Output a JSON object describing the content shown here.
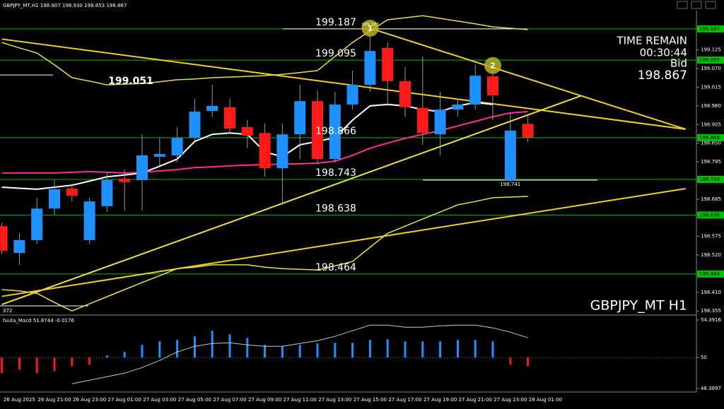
{
  "header": "GBPJPY_MT,H1  198.907 198.930 198.853 198.867",
  "info": {
    "time_remain_label": "TIME REMAIN",
    "time_remain": "00:30:44",
    "bid_label": "Bid",
    "bid": "198.867",
    "symbol": "GBPJPY_MT H1"
  },
  "chart_data": [
    {
      "type": "candlestick",
      "categories": [
        null,
        "26 Aug 2025",
        null,
        "26 Aug 21:00",
        null,
        "26 Aug 23:00",
        null,
        "27 Aug 01:00",
        null,
        "27 Aug 03:00",
        null,
        "27 Aug 05:00",
        null,
        "27 Aug 07:00",
        null,
        "27 Aug 09:00",
        null,
        "27 Aug 11:00",
        null,
        "27 Aug 13:00",
        null,
        "27 Aug 15:00",
        null,
        "27 Aug 17:00",
        null,
        "27 Aug 19:00",
        null,
        "27 Aug 21:00",
        null,
        "27 Aug 23:00",
        null,
        "28 Aug 01:00"
      ],
      "open": [
        198.605,
        198.526,
        198.564,
        198.657,
        198.716,
        198.564,
        198.664,
        198.745,
        198.741,
        198.81,
        198.814,
        198.866,
        198.945,
        198.956,
        198.897,
        198.88,
        198.776,
        198.876,
        198.974,
        198.803,
        198.964,
        199.022,
        199.131,
        199.033,
        198.954,
        198.876,
        198.949,
        198.964,
        199.047,
        198.741,
        198.907,
        null
      ],
      "high": [
        198.616,
        198.585,
        198.689,
        198.741,
        198.73,
        198.689,
        198.762,
        198.772,
        198.876,
        198.866,
        198.897,
        198.981,
        199.022,
        198.981,
        198.918,
        198.908,
        198.908,
        199.022,
        199.006,
        199.001,
        199.064,
        199.179,
        199.147,
        199.074,
        199.106,
        199.001,
        198.981,
        199.081,
        199.064,
        198.939,
        198.93,
        null
      ],
      "low": [
        198.522,
        198.491,
        198.553,
        198.637,
        198.678,
        198.553,
        198.647,
        198.651,
        198.651,
        198.783,
        198.793,
        198.855,
        198.928,
        198.876,
        198.835,
        198.751,
        198.668,
        198.803,
        198.789,
        198.793,
        198.949,
        199.001,
        198.96,
        198.928,
        198.845,
        198.814,
        198.928,
        198.949,
        198.918,
        198.735,
        198.853,
        null
      ],
      "close": [
        198.532,
        198.564,
        198.657,
        198.714,
        198.695,
        198.678,
        198.741,
        198.735,
        198.814,
        198.818,
        198.866,
        198.943,
        198.96,
        198.893,
        198.872,
        198.776,
        198.876,
        198.974,
        198.803,
        198.964,
        199.022,
        199.122,
        199.033,
        198.956,
        198.88,
        198.949,
        198.964,
        199.049,
        198.991,
        198.887,
        198.867,
        null
      ],
      "up_color": "#1e90ff",
      "down_color": "#ff1a1a",
      "wick_color": "#9a9a9a",
      "ylim": [
        198.345,
        199.241
      ],
      "yticks": [
        199.125,
        {
          "value": 199.07,
          "label": "199.070"
        },
        199.015,
        {
          "value": 198.96,
          "label": "198.960"
        },
        198.905,
        {
          "value": 198.85,
          "label": "198.850"
        },
        198.795,
        198.685,
        198.575,
        {
          "value": 198.52,
          "label": "198.520"
        },
        {
          "value": 198.41,
          "label": "198.410"
        },
        198.355
      ],
      "overlays": [
        {
          "color": "#ffffff",
          "values": [
            198.72,
            198.717,
            198.714,
            198.72,
            198.726,
            198.738,
            198.751,
            198.756,
            198.762,
            198.782,
            198.803,
            198.855,
            198.876,
            198.88,
            198.876,
            198.824,
            198.81,
            198.845,
            198.855,
            198.866,
            198.918,
            198.96,
            198.964,
            198.96,
            198.949,
            198.943,
            198.96,
            198.97,
            198.964,
            null,
            null,
            null
          ]
        },
        {
          "color": "#ff2e9a",
          "values": [
            198.762,
            198.762,
            198.762,
            198.762,
            198.764,
            198.766,
            198.764,
            198.762,
            198.764,
            198.768,
            198.772,
            198.778,
            198.78,
            198.783,
            198.785,
            198.787,
            198.788,
            198.789,
            198.791,
            198.797,
            198.814,
            198.835,
            198.85,
            198.864,
            198.876,
            198.887,
            198.901,
            198.914,
            198.928,
            198.939,
            198.943,
            null
          ]
        },
        {
          "color": "#e8e04a",
          "values": [
            199.147,
            199.131,
            199.116,
            199.081,
            199.043,
            199.033,
            199.022,
            199.024,
            199.026,
            199.031,
            199.037,
            199.039,
            199.043,
            199.045,
            199.047,
            199.049,
            199.053,
            199.058,
            199.064,
            199.106,
            199.147,
            199.181,
            199.214,
            199.22,
            199.226,
            199.218,
            199.21,
            199.202,
            199.193,
            199.189,
            199.185,
            null
          ]
        },
        {
          "color": "#e8e04a",
          "values": [
            198.418,
            198.414,
            198.407,
            198.38,
            198.355,
            198.376,
            198.397,
            198.418,
            198.439,
            198.459,
            198.48,
            198.484,
            198.491,
            198.491,
            198.491,
            198.484,
            198.48,
            198.478,
            198.476,
            198.488,
            198.501,
            198.543,
            198.584,
            198.605,
            198.626,
            198.647,
            198.668,
            198.678,
            198.689,
            198.691,
            198.693,
            null
          ]
        }
      ],
      "trendlines": [
        {
          "color": "#f0d020",
          "points": [
            [
              0,
              199.157
            ],
            [
              39,
              198.891
            ]
          ]
        },
        {
          "color": "#f0d020",
          "points": [
            [
              21,
              199.189
            ],
            [
              39,
              198.891
            ]
          ]
        },
        {
          "color": "#f0e040",
          "points": [
            [
              0,
              198.374
            ],
            [
              33,
              198.989
            ]
          ]
        },
        {
          "color": "#f0d020",
          "points": [
            [
              0,
              198.398
            ],
            [
              39,
              198.716
            ]
          ]
        }
      ],
      "level_color": "#00c000",
      "levels": [
        199.187,
        199.095,
        198.866,
        198.743,
        198.638,
        198.464
      ],
      "price_lines": [
        {
          "price": 199.051,
          "label": "199.051"
        },
        {
          "price": 198.741,
          "label": "198.741"
        },
        {
          "price": 198.37,
          "label": "372"
        }
      ],
      "markers": [
        {
          "label": "1",
          "index": 21,
          "price": 199.189
        },
        {
          "label": "2",
          "index": 28,
          "price": 199.079
        }
      ]
    },
    {
      "type": "bar",
      "title": "fuuta_Macd 51.8744 -0.0176",
      "values": [
        48.18,
        48.6,
        48.18,
        48.43,
        49.01,
        49.17,
        50.25,
        50.66,
        51.49,
        51.9,
        52.06,
        52.48,
        53.14,
        52.72,
        52.31,
        51.49,
        51.32,
        51.49,
        51.65,
        51.73,
        51.73,
        52.06,
        52.15,
        51.9,
        51.9,
        51.9,
        52.06,
        52.06,
        51.9,
        49.17,
        49.01,
        null
      ],
      "signal": [
        null,
        null,
        null,
        null,
        46.95,
        47.36,
        47.77,
        48.18,
        48.84,
        49.67,
        50.66,
        51.32,
        51.65,
        51.73,
        51.49,
        51.32,
        51.32,
        51.65,
        51.98,
        52.48,
        53.14,
        53.8,
        53.8,
        53.55,
        53.55,
        53.71,
        53.8,
        53.8,
        53.47,
        52.97,
        52.31,
        null
      ],
      "signal_color": "#c8c8c8",
      "up_color": "#1e90ff",
      "down_color": "#ff1a1a",
      "baseline": 50,
      "ylim": [
        46.3897,
        54.3916
      ],
      "yticks": [
        46.3897,
        50,
        54.3916
      ]
    }
  ]
}
